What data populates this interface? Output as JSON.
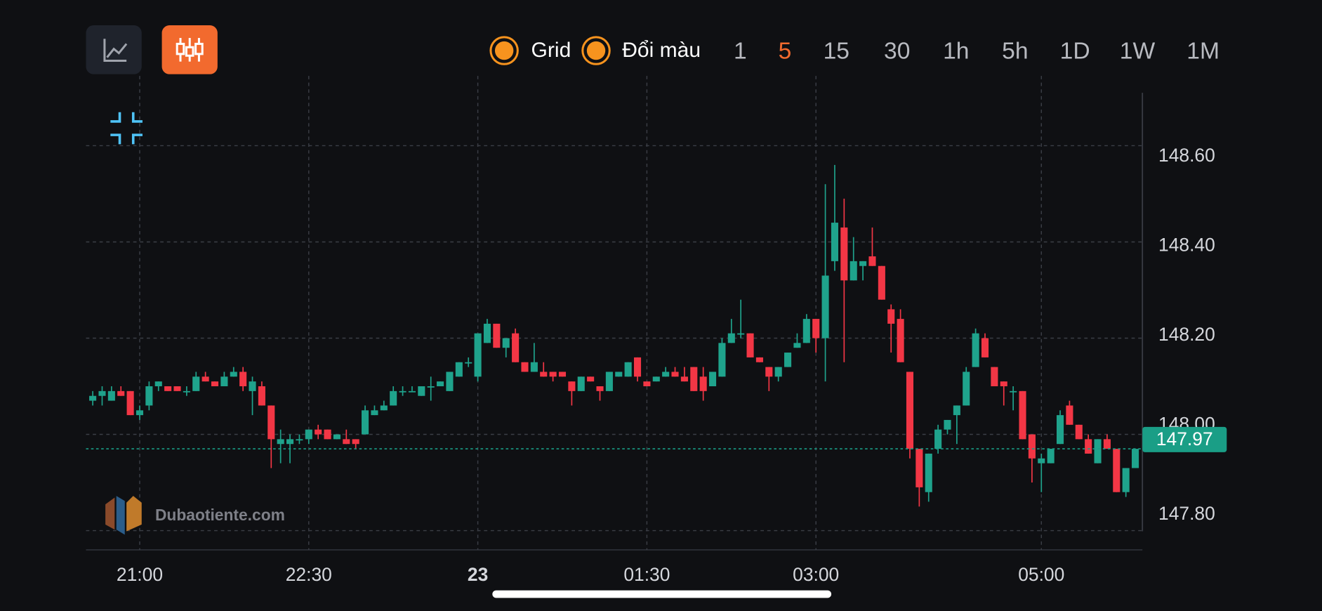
{
  "toolbar": {
    "options": [
      "Grid",
      "Đổi màu"
    ],
    "intervals": [
      "1",
      "5",
      "15",
      "30",
      "1h",
      "5h",
      "1D",
      "1W",
      "1M"
    ],
    "active_interval_index": 1
  },
  "watermark": "Dubaotiente.com",
  "chart_data": {
    "type": "candlestick",
    "x": [
      "20:35",
      "20:40",
      "20:45",
      "20:50",
      "20:55",
      "21:00",
      "21:05",
      "21:10",
      "21:15",
      "21:20",
      "21:25",
      "21:30",
      "21:35",
      "21:40",
      "21:45",
      "21:50",
      "21:55",
      "22:00",
      "22:05",
      "22:10",
      "22:15",
      "22:20",
      "22:25",
      "22:30",
      "22:35",
      "22:40",
      "22:45",
      "22:50",
      "22:55",
      "23:00",
      "23:05",
      "23:10",
      "23:15",
      "23:20",
      "23:25",
      "23:30",
      "23:35",
      "23:40",
      "23:45",
      "23:50",
      "23:55",
      "00:00",
      "00:05",
      "00:10",
      "00:15",
      "00:20",
      "00:25",
      "00:30",
      "00:35",
      "00:40",
      "00:45",
      "00:50",
      "00:55",
      "01:00",
      "01:05",
      "01:10",
      "01:15",
      "01:20",
      "01:25",
      "01:30",
      "01:35",
      "01:40",
      "01:45",
      "01:50",
      "01:55",
      "02:00",
      "02:05",
      "02:10",
      "02:15",
      "02:20",
      "02:25",
      "02:30",
      "02:35",
      "02:40",
      "02:45",
      "02:50",
      "02:55",
      "03:00",
      "03:05",
      "03:10",
      "03:15",
      "03:20",
      "03:25",
      "03:30",
      "03:35",
      "03:40",
      "03:45",
      "03:50",
      "03:55",
      "04:00",
      "04:05",
      "04:10",
      "04:15",
      "04:20",
      "04:25",
      "04:30",
      "04:35",
      "04:40",
      "04:45",
      "04:50",
      "04:55",
      "05:00",
      "05:05",
      "05:10",
      "05:15",
      "05:20",
      "05:25",
      "05:30",
      "05:35",
      "05:40",
      "05:45",
      "05:50"
    ],
    "open": [
      148.07,
      148.08,
      148.07,
      148.09,
      148.09,
      148.04,
      148.06,
      148.1,
      148.1,
      148.1,
      148.09,
      148.09,
      148.12,
      148.11,
      148.1,
      148.12,
      148.13,
      148.09,
      148.1,
      148.06,
      147.98,
      147.98,
      147.99,
      147.99,
      148.01,
      148.01,
      147.99,
      147.99,
      147.99,
      148.0,
      148.04,
      148.05,
      148.06,
      148.09,
      148.09,
      148.08,
      148.1,
      148.1,
      148.09,
      148.12,
      148.15,
      148.12,
      148.19,
      148.23,
      148.18,
      148.21,
      148.15,
      148.13,
      148.13,
      148.13,
      148.13,
      148.11,
      148.09,
      148.12,
      148.1,
      148.09,
      148.12,
      148.12,
      148.16,
      148.11,
      148.11,
      148.12,
      148.13,
      148.12,
      148.14,
      148.12,
      148.1,
      148.12,
      148.19,
      148.21,
      148.21,
      148.16,
      148.14,
      148.12,
      148.14,
      148.18,
      148.19,
      148.24,
      148.2,
      148.36,
      148.43,
      148.32,
      148.35,
      148.37,
      148.35,
      148.26,
      148.24,
      148.13,
      147.97,
      147.88,
      147.97,
      148.01,
      148.04,
      148.06,
      148.14,
      148.2,
      148.14,
      148.11,
      148.09,
      148.09,
      148.0,
      147.94,
      147.94,
      147.98,
      148.06,
      148.02,
      147.99,
      147.94,
      147.99,
      147.97,
      147.88,
      147.93
    ],
    "high": [
      148.09,
      148.1,
      148.1,
      148.1,
      148.09,
      148.06,
      148.11,
      148.11,
      148.1,
      148.1,
      148.1,
      148.13,
      148.13,
      148.11,
      148.13,
      148.14,
      148.14,
      148.12,
      148.11,
      148.06,
      148.01,
      148.0,
      148.0,
      148.01,
      148.02,
      148.01,
      148.0,
      148.01,
      147.99,
      148.06,
      148.06,
      148.07,
      148.1,
      148.1,
      148.1,
      148.1,
      148.12,
      148.11,
      148.13,
      148.15,
      148.16,
      148.21,
      148.24,
      148.23,
      148.2,
      148.22,
      148.15,
      148.19,
      148.15,
      148.13,
      148.13,
      148.11,
      148.12,
      148.12,
      148.1,
      148.13,
      148.13,
      148.15,
      148.16,
      148.11,
      148.12,
      148.14,
      148.14,
      148.14,
      148.14,
      148.14,
      148.13,
      148.2,
      148.24,
      148.28,
      148.21,
      148.16,
      148.14,
      148.14,
      148.17,
      148.21,
      148.25,
      148.24,
      148.52,
      148.56,
      148.49,
      148.41,
      148.36,
      148.43,
      148.35,
      148.27,
      148.26,
      148.13,
      147.97,
      147.96,
      148.02,
      148.03,
      148.06,
      148.14,
      148.22,
      148.21,
      148.14,
      148.11,
      148.1,
      148.09,
      148.0,
      147.96,
      147.97,
      148.05,
      148.07,
      148.02,
      148.0,
      147.99,
      148.0,
      147.97,
      147.93,
      147.97
    ],
    "low": [
      148.06,
      148.06,
      148.07,
      148.08,
      148.04,
      148.03,
      148.05,
      148.09,
      148.09,
      148.09,
      148.08,
      148.09,
      148.11,
      148.1,
      148.1,
      148.12,
      148.09,
      148.04,
      148.06,
      147.93,
      147.94,
      147.94,
      147.98,
      147.98,
      147.99,
      147.99,
      147.99,
      147.98,
      147.97,
      148.0,
      148.04,
      148.05,
      148.06,
      148.08,
      148.09,
      148.08,
      148.07,
      148.1,
      148.09,
      148.12,
      148.14,
      148.11,
      148.19,
      148.18,
      148.16,
      148.15,
      148.13,
      148.13,
      148.12,
      148.11,
      148.12,
      148.06,
      148.09,
      148.11,
      148.07,
      148.09,
      148.12,
      148.12,
      148.11,
      148.1,
      148.11,
      148.12,
      148.12,
      148.11,
      148.09,
      148.07,
      148.1,
      148.12,
      148.19,
      148.2,
      148.16,
      148.15,
      148.09,
      148.11,
      148.14,
      148.18,
      148.19,
      148.17,
      148.11,
      148.34,
      148.15,
      148.32,
      148.32,
      148.35,
      148.28,
      148.17,
      148.15,
      147.95,
      147.85,
      147.86,
      147.96,
      148.0,
      147.98,
      148.06,
      148.14,
      148.16,
      148.1,
      148.06,
      148.05,
      147.99,
      147.9,
      147.88,
      147.94,
      147.98,
      148.02,
      147.99,
      147.96,
      147.94,
      147.97,
      147.88,
      147.87,
      147.93
    ],
    "close": [
      148.08,
      148.09,
      148.09,
      148.08,
      148.04,
      148.05,
      148.1,
      148.11,
      148.09,
      148.09,
      148.09,
      148.12,
      148.11,
      148.1,
      148.12,
      148.13,
      148.1,
      148.11,
      148.06,
      147.99,
      147.99,
      147.99,
      147.99,
      148.01,
      148.0,
      147.99,
      148.0,
      147.98,
      147.98,
      148.05,
      148.05,
      148.06,
      148.09,
      148.09,
      148.09,
      148.1,
      148.1,
      148.11,
      148.13,
      148.15,
      148.15,
      148.21,
      148.23,
      148.18,
      148.2,
      148.15,
      148.13,
      148.15,
      148.12,
      148.12,
      148.12,
      148.09,
      148.12,
      148.11,
      148.09,
      148.13,
      148.13,
      148.15,
      148.12,
      148.1,
      148.12,
      148.13,
      148.12,
      148.11,
      148.09,
      148.09,
      148.13,
      148.19,
      148.21,
      148.21,
      148.16,
      148.15,
      148.12,
      148.14,
      148.17,
      148.19,
      148.24,
      148.2,
      148.33,
      148.44,
      148.32,
      148.36,
      148.36,
      148.35,
      148.28,
      148.23,
      148.15,
      147.97,
      147.89,
      147.96,
      148.01,
      148.03,
      148.06,
      148.13,
      148.21,
      148.16,
      148.1,
      148.1,
      148.09,
      147.99,
      147.95,
      147.95,
      147.97,
      148.04,
      148.02,
      147.99,
      147.96,
      147.99,
      147.97,
      147.88,
      147.93,
      147.97
    ],
    "up_color": "#1fa38c",
    "down_color": "#f23645",
    "ylim": [
      147.76,
      148.71
    ],
    "yticks": [
      {
        "value": 147.8,
        "label": "147.80"
      },
      {
        "value": 148,
        "label": "148.00"
      },
      {
        "value": 148.2,
        "label": "148.20"
      },
      {
        "value": 148.4,
        "label": "148.40"
      },
      {
        "value": 148.6,
        "label": "148.60"
      }
    ],
    "xticks": [
      "21:00",
      "22:30",
      {
        "value": "00:00",
        "label": "23"
      },
      "01:30",
      "03:00",
      "05:00"
    ],
    "last_price": 147.97,
    "last_price_color": "#1a9e86",
    "grid": true
  }
}
